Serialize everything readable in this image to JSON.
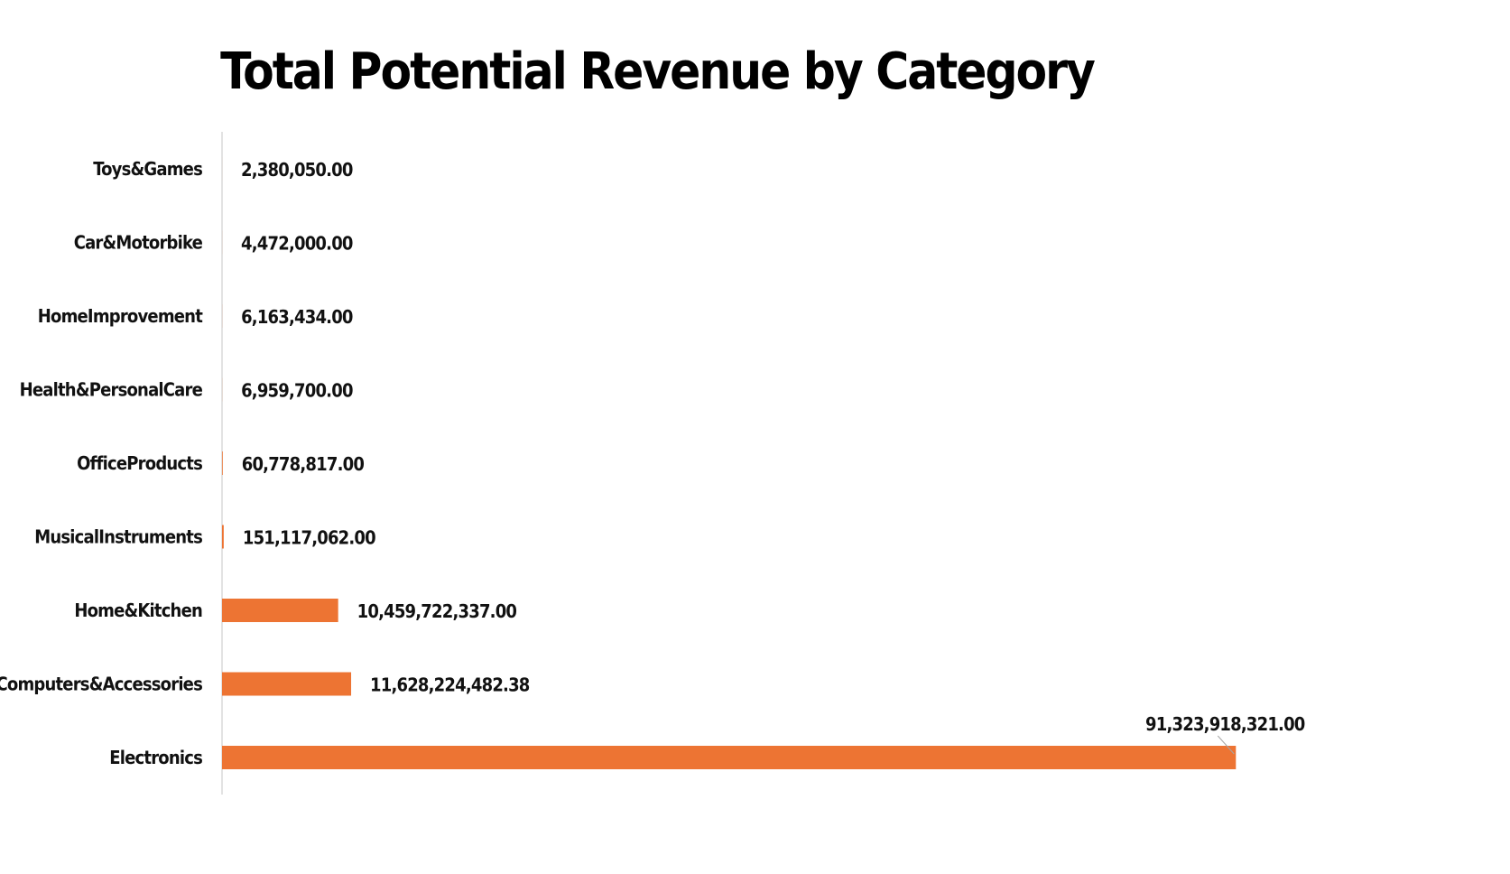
{
  "chart_data": {
    "type": "bar",
    "orientation": "horizontal",
    "title": "Total Potential Revenue by Category",
    "xlabel": "",
    "ylabel": "",
    "categories": [
      "Toys&Games",
      "Car&Motorbike",
      "HomeImprovement",
      "Health&PersonalCare",
      "OfficeProducts",
      "MusicalInstruments",
      "Home&Kitchen",
      "Computers&Accessories",
      "Electronics"
    ],
    "values": [
      2380050.0,
      4472000.0,
      6163434.0,
      6959700.0,
      60778817.0,
      151117062.0,
      10459722337.0,
      11628224482.38,
      91323918321.0
    ],
    "data_labels": [
      "2,380,050.00",
      "4,472,000.00",
      "6,163,434.00",
      "6,959,700.00",
      "60,778,817.00",
      "151,117,062.00",
      "10,459,722,337.00",
      "11,628,224,482.38",
      "91,323,918,321.00"
    ],
    "xlim": [
      0,
      100000000000
    ],
    "grid": false,
    "legend": "none",
    "bar_color": "#ED7433",
    "axis_color": "#D9D9D9"
  }
}
